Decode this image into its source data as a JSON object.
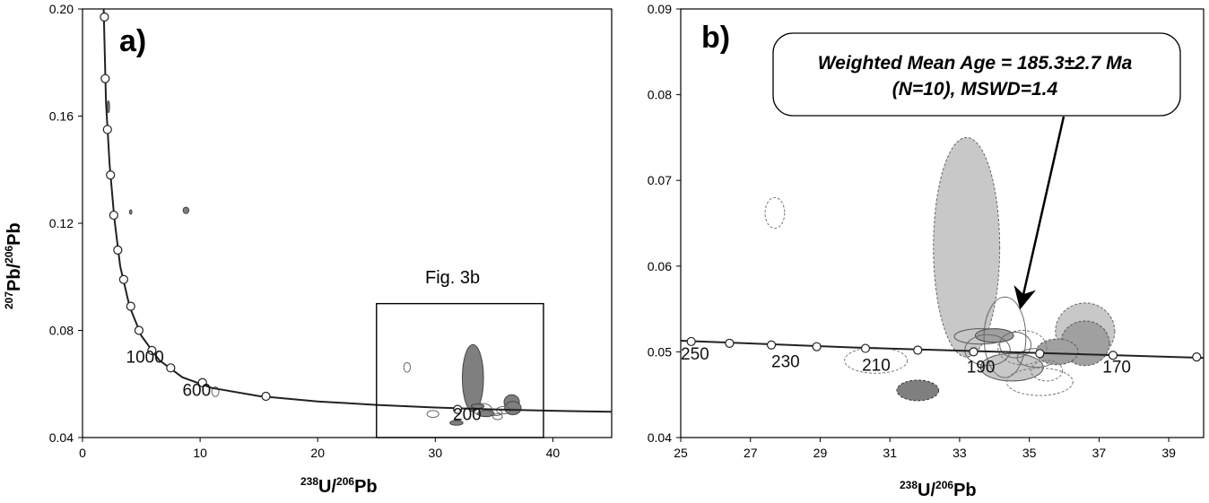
{
  "chart_data": [
    {
      "type": "scatter",
      "panel_label": "a)",
      "xlabel": {
        "sup": "238",
        "main": "U/",
        "sup2": "206",
        "main2": "Pb"
      },
      "ylabel": {
        "sup": "207",
        "main": "Pb/",
        "sup2": "206",
        "main2": "Pb"
      },
      "xlim": [
        0,
        45
      ],
      "ylim": [
        0.04,
        0.2
      ],
      "xticks": [
        "0",
        "10",
        "20",
        "30",
        "40"
      ],
      "yticks": [
        "0.04",
        "0.08",
        "0.12",
        "0.16",
        "0.20"
      ],
      "concordia": {
        "points": [
          [
            1.86,
            0.197
          ],
          [
            1.93,
            0.174
          ],
          [
            2.12,
            0.155
          ],
          [
            2.38,
            0.138
          ],
          [
            2.66,
            0.123
          ],
          [
            3.0,
            0.11
          ],
          [
            3.5,
            0.099
          ],
          [
            4.1,
            0.089
          ],
          [
            4.8,
            0.08
          ],
          [
            5.9,
            0.0725
          ],
          [
            7.5,
            0.066
          ],
          [
            10.2,
            0.0605
          ],
          [
            15.6,
            0.0554
          ],
          [
            31.9,
            0.0505
          ]
        ],
        "curve": [
          [
            1.8,
            0.2
          ],
          [
            2.0,
            0.165
          ],
          [
            2.3,
            0.142
          ],
          [
            2.7,
            0.122
          ],
          [
            3.2,
            0.104
          ],
          [
            4.0,
            0.089
          ],
          [
            5.0,
            0.078
          ],
          [
            6.5,
            0.069
          ],
          [
            8.5,
            0.0625
          ],
          [
            11,
            0.0585
          ],
          [
            15,
            0.0555
          ],
          [
            20,
            0.0535
          ],
          [
            25,
            0.0522
          ],
          [
            30,
            0.0512
          ],
          [
            35,
            0.0505
          ],
          [
            40,
            0.05
          ],
          [
            45,
            0.0496
          ]
        ],
        "age_labels": [
          {
            "text": "1000",
            "x": 3.7,
            "y": 0.068
          },
          {
            "text": "600",
            "x": 8.5,
            "y": 0.0555
          },
          {
            "text": "200",
            "x": 31.5,
            "y": 0.0465
          }
        ]
      },
      "ellipses": [
        {
          "x": 2.2,
          "y": 0.1635,
          "rx": 0.1,
          "ry": 0.0022,
          "style": "dark"
        },
        {
          "x": 4.1,
          "y": 0.1242,
          "rx": 0.1,
          "ry": 0.0008,
          "style": "dark"
        },
        {
          "x": 8.8,
          "y": 0.1248,
          "rx": 0.25,
          "ry": 0.0012,
          "style": "dark"
        },
        {
          "x": 11.3,
          "y": 0.0571,
          "rx": 0.3,
          "ry": 0.0018,
          "style": "open"
        },
        {
          "x": 27.6,
          "y": 0.0662,
          "rx": 0.28,
          "ry": 0.0018,
          "style": "open"
        },
        {
          "x": 29.8,
          "y": 0.0488,
          "rx": 0.5,
          "ry": 0.0013,
          "style": "open"
        },
        {
          "x": 33.2,
          "y": 0.0622,
          "rx": 0.9,
          "ry": 0.0125,
          "style": "dark"
        },
        {
          "x": 34.0,
          "y": 0.0505,
          "rx": 0.8,
          "ry": 0.0022,
          "style": "open"
        },
        {
          "x": 33.6,
          "y": 0.0517,
          "rx": 0.55,
          "ry": 0.0008,
          "style": "dark"
        },
        {
          "x": 34.3,
          "y": 0.049,
          "rx": 0.7,
          "ry": 0.0012,
          "style": "dark"
        },
        {
          "x": 35.2,
          "y": 0.0493,
          "rx": 0.5,
          "ry": 0.0011,
          "style": "open"
        },
        {
          "x": 36.5,
          "y": 0.0532,
          "rx": 0.65,
          "ry": 0.0028,
          "style": "dark"
        },
        {
          "x": 36.6,
          "y": 0.051,
          "rx": 0.7,
          "ry": 0.0025,
          "style": "dark"
        },
        {
          "x": 35.8,
          "y": 0.0502,
          "rx": 0.6,
          "ry": 0.0014,
          "style": "open"
        },
        {
          "x": 35.3,
          "y": 0.0478,
          "rx": 0.4,
          "ry": 0.0011,
          "style": "open"
        },
        {
          "x": 31.8,
          "y": 0.0455,
          "rx": 0.55,
          "ry": 0.0009,
          "style": "dark"
        }
      ],
      "inset_box": {
        "x0": 25,
        "x1": 39.2,
        "y0": 0.04,
        "y1": 0.09,
        "label": "Fig. 3b"
      }
    },
    {
      "type": "scatter",
      "panel_label": "b)",
      "xlabel": {
        "sup": "238",
        "main": "U/",
        "sup2": "206",
        "main2": "Pb"
      },
      "xlim": [
        25,
        40
      ],
      "ylim": [
        0.04,
        0.09
      ],
      "xticks": [
        "25",
        "27",
        "29",
        "31",
        "33",
        "35",
        "37",
        "39"
      ],
      "yticks": [
        "0.04",
        "0.05",
        "0.06",
        "0.07",
        "0.08",
        "0.09"
      ],
      "concordia": {
        "points": [
          [
            25.3,
            0.0512
          ],
          [
            26.4,
            0.051
          ],
          [
            27.6,
            0.0508
          ],
          [
            28.9,
            0.0506
          ],
          [
            30.3,
            0.0504
          ],
          [
            31.8,
            0.0502
          ],
          [
            33.4,
            0.05
          ],
          [
            35.3,
            0.0498
          ],
          [
            37.4,
            0.0496
          ],
          [
            39.8,
            0.0494
          ]
        ],
        "curve": [
          [
            25,
            0.0513
          ],
          [
            30,
            0.0505
          ],
          [
            35,
            0.0499
          ],
          [
            40,
            0.0493
          ]
        ],
        "age_labels": [
          {
            "text": "250",
            "x": 25.0,
            "y": 0.0491
          },
          {
            "text": "230",
            "x": 27.6,
            "y": 0.0482
          },
          {
            "text": "210",
            "x": 30.2,
            "y": 0.0478
          },
          {
            "text": "190",
            "x": 33.2,
            "y": 0.0476
          },
          {
            "text": "170",
            "x": 37.1,
            "y": 0.0476
          }
        ]
      },
      "ellipses": [
        {
          "x": 27.7,
          "y": 0.0662,
          "rx": 0.28,
          "ry": 0.0018,
          "style": "open-dashed"
        },
        {
          "x": 33.2,
          "y": 0.0622,
          "rx": 0.95,
          "ry": 0.0128,
          "style": "light-dashed"
        },
        {
          "x": 36.6,
          "y": 0.0524,
          "rx": 0.85,
          "ry": 0.0033,
          "style": "light-dashed"
        },
        {
          "x": 36.6,
          "y": 0.051,
          "rx": 0.7,
          "ry": 0.0026,
          "style": "medium-dashed"
        },
        {
          "x": 34.5,
          "y": 0.0482,
          "rx": 0.9,
          "ry": 0.0016,
          "style": "light"
        },
        {
          "x": 33.6,
          "y": 0.0518,
          "rx": 0.75,
          "ry": 0.0009,
          "style": "light"
        },
        {
          "x": 34.0,
          "y": 0.0519,
          "rx": 0.55,
          "ry": 0.0008,
          "style": "medium"
        },
        {
          "x": 34.3,
          "y": 0.0517,
          "rx": 0.6,
          "ry": 0.0047,
          "style": "open"
        },
        {
          "x": 33.8,
          "y": 0.0502,
          "rx": 0.65,
          "ry": 0.0018,
          "style": "open"
        },
        {
          "x": 34.6,
          "y": 0.0508,
          "rx": 0.45,
          "ry": 0.0015,
          "style": "open"
        },
        {
          "x": 35.2,
          "y": 0.0493,
          "rx": 0.55,
          "ry": 0.0011,
          "style": "open"
        },
        {
          "x": 35.8,
          "y": 0.05,
          "rx": 0.6,
          "ry": 0.0015,
          "style": "medium-dashed"
        },
        {
          "x": 35.5,
          "y": 0.0478,
          "rx": 0.45,
          "ry": 0.0012,
          "style": "open-dashed"
        },
        {
          "x": 35.3,
          "y": 0.0465,
          "rx": 0.95,
          "ry": 0.0016,
          "style": "open-dashed"
        },
        {
          "x": 30.6,
          "y": 0.049,
          "rx": 0.9,
          "ry": 0.0015,
          "style": "open-dashed"
        },
        {
          "x": 34.8,
          "y": 0.0505,
          "rx": 0.7,
          "ry": 0.002,
          "style": "open-dashed"
        },
        {
          "x": 31.8,
          "y": 0.0455,
          "rx": 0.6,
          "ry": 0.0012,
          "style": "dark-dashed"
        }
      ],
      "callout": {
        "line1": "Weighted Mean Age = 185.3±2.7 Ma",
        "line2": "(N=10), MSWD=1.4",
        "arrow_target": [
          34.6,
          0.0565
        ]
      }
    }
  ],
  "colors": {
    "dark": "#7f7f7f",
    "medium": "#a0a0a0",
    "light": "#c8c8c8",
    "line": "#222222"
  }
}
